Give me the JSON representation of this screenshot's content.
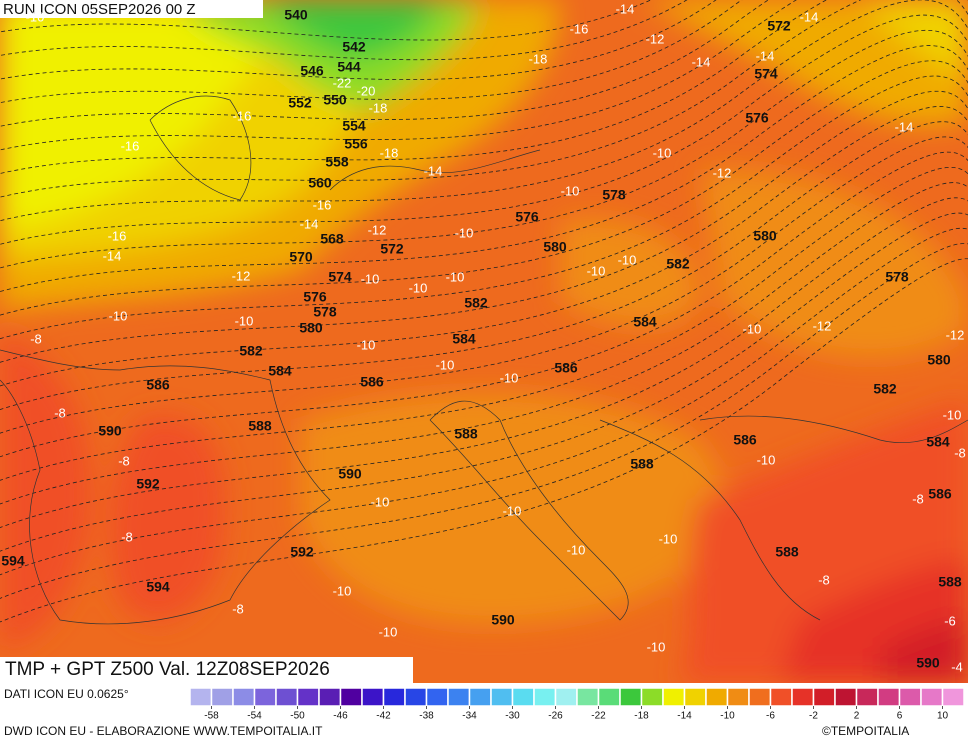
{
  "header": {
    "run": "RUN ICON 05SEP2026 00 Z"
  },
  "map": {
    "title": "TMP + GPT Z500 Val. 12Z08SEP2026",
    "geopotential_labels": [
      "540",
      "542",
      "544",
      "546",
      "552",
      "550",
      "554",
      "556",
      "558",
      "560",
      "568",
      "570",
      "572",
      "574",
      "576",
      "578",
      "580",
      "582",
      "584",
      "586",
      "590",
      "588",
      "592",
      "594",
      "592",
      "594",
      "590",
      "588",
      "586",
      "584",
      "582",
      "580",
      "576",
      "578",
      "582",
      "584",
      "586",
      "588",
      "590",
      "572",
      "574",
      "576",
      "580",
      "578",
      "580",
      "582",
      "584",
      "586",
      "586",
      "588",
      "588",
      "590"
    ],
    "temperature_labels": [
      "-10",
      "-14",
      "-16",
      "-12",
      "-14",
      "-18",
      "-14",
      "-14",
      "-22",
      "-20",
      "-18",
      "-16",
      "-16",
      "-14",
      "-18",
      "-14",
      "-10",
      "-12",
      "-16",
      "-10",
      "-14",
      "-12",
      "-10",
      "-16",
      "-14",
      "-12",
      "-10",
      "-10",
      "-10",
      "-10",
      "-10",
      "-10",
      "-10",
      "-12",
      "-10",
      "-12",
      "-8",
      "-10",
      "-10",
      "-10",
      "-8",
      "-10",
      "-8",
      "-8",
      "-10",
      "-10",
      "-10",
      "-8",
      "-8",
      "-10",
      "-10",
      "-8",
      "-10",
      "-8",
      "-10",
      "-10",
      "-6",
      "-4"
    ]
  },
  "colorbar": {
    "lim": [
      -60,
      12
    ],
    "ticks": [
      -58,
      -54,
      -50,
      -46,
      -42,
      -38,
      -34,
      -30,
      -26,
      -22,
      -18,
      -14,
      -10,
      -6,
      -2,
      2,
      6,
      10
    ],
    "colors": [
      "#b4b4ee",
      "#a0a0e6",
      "#8c8ce6",
      "#7c64dc",
      "#6e50d2",
      "#6432c8",
      "#5a1eb4",
      "#5000a0",
      "#3c14c8",
      "#2828dc",
      "#2846e6",
      "#3264f0",
      "#3c82f0",
      "#46a0f0",
      "#50bef0",
      "#5adcf0",
      "#78f0f0",
      "#a0f0f0",
      "#78e6a0",
      "#5adc78",
      "#3cc83c",
      "#8cdc28",
      "#f0f000",
      "#f0d200",
      "#f0aa00",
      "#f08c14",
      "#f06e1e",
      "#f05028",
      "#e63228",
      "#d21e28",
      "#be1432",
      "#c8285a",
      "#d23c82",
      "#dc5aaa",
      "#e678c8",
      "#f096dc"
    ]
  },
  "footer": {
    "source": "DATI ICON EU 0.0625°",
    "credit": "DWD ICON EU - ELABORAZIONE WWW.TEMPOITALIA.IT",
    "brand": "©TEMPOITALIA"
  }
}
